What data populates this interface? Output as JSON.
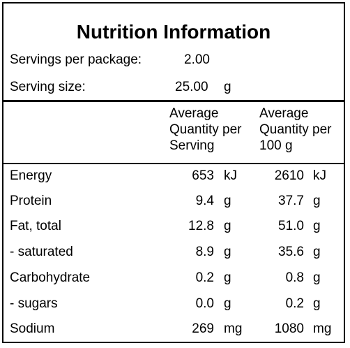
{
  "title": "Nutrition Information",
  "servings": {
    "per_package_label": "Servings per package:",
    "per_package_value": "2.00",
    "size_label": "Serving size:",
    "size_value": "25.00",
    "size_unit": "g"
  },
  "headers": {
    "per_serving": [
      "Average",
      "Quantity per",
      "Serving"
    ],
    "per_100g": [
      "Average",
      "Quantity per",
      "100 g"
    ]
  },
  "rows": [
    {
      "name": "Energy",
      "serving": "653",
      "serving_unit": "kJ",
      "per100": "2610",
      "per100_unit": "kJ"
    },
    {
      "name": "Protein",
      "serving": "9.4",
      "serving_unit": "g",
      "per100": "37.7",
      "per100_unit": "g"
    },
    {
      "name": "Fat, total",
      "serving": "12.8",
      "serving_unit": "g",
      "per100": "51.0",
      "per100_unit": "g"
    },
    {
      "name": "- saturated",
      "serving": "8.9",
      "serving_unit": "g",
      "per100": "35.6",
      "per100_unit": "g"
    },
    {
      "name": "Carbohydrate",
      "serving": "0.2",
      "serving_unit": "g",
      "per100": "0.8",
      "per100_unit": "g"
    },
    {
      "name": "- sugars",
      "serving": "0.0",
      "serving_unit": "g",
      "per100": "0.2",
      "per100_unit": "g"
    },
    {
      "name": "Sodium",
      "serving": "269",
      "serving_unit": "mg",
      "per100": "1080",
      "per100_unit": "mg"
    }
  ]
}
